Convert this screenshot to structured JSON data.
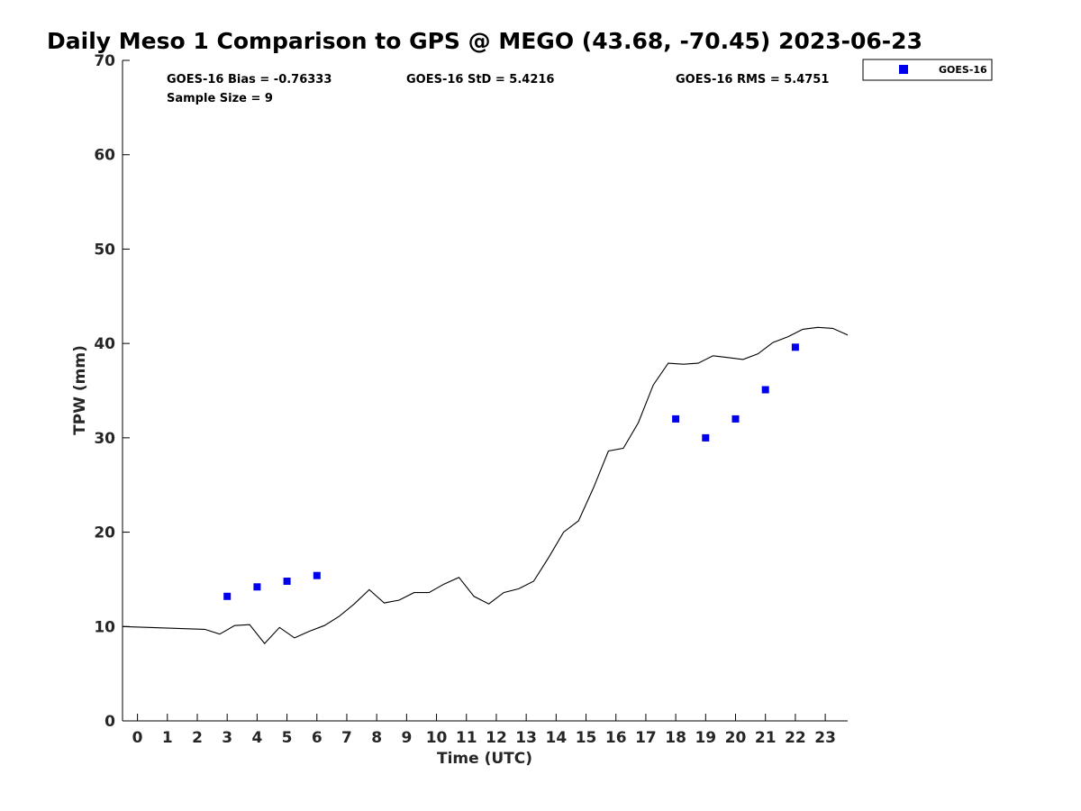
{
  "chart_data": {
    "type": "scatter",
    "title": "Daily Meso 1 Comparison to GPS @ MEGO (43.68, -70.45) 2023-06-23",
    "xlabel": "Time (UTC)",
    "ylabel": "TPW (mm)",
    "xlim": [
      -0.5,
      23.75
    ],
    "ylim": [
      0,
      70
    ],
    "x_ticks": [
      0,
      1,
      2,
      3,
      4,
      5,
      6,
      7,
      8,
      9,
      10,
      11,
      12,
      13,
      14,
      15,
      16,
      17,
      18,
      19,
      20,
      21,
      22,
      23
    ],
    "y_ticks": [
      0,
      10,
      20,
      30,
      40,
      50,
      60,
      70
    ],
    "grid": false,
    "legend_position": "top-right",
    "stats": {
      "bias": "GOES-16 Bias = -0.76333",
      "std": "GOES-16 StD = 5.4216",
      "rms": "GOES-16 RMS = 5.4751",
      "sample": "Sample Size = 9"
    },
    "series": [
      {
        "name": "GOES-16",
        "kind": "markers",
        "color": "#0000ee",
        "x": [
          3,
          4,
          5,
          6,
          18,
          19,
          20,
          21,
          22
        ],
        "y": [
          13.2,
          14.2,
          14.8,
          15.4,
          32.0,
          30.0,
          32.0,
          35.1,
          39.6
        ]
      },
      {
        "kind": "line",
        "color": "#000000",
        "x": [
          -0.5,
          2.25,
          2.75,
          3.25,
          3.75,
          4.25,
          4.75,
          5.25,
          5.75,
          6.25,
          6.75,
          7.25,
          7.75,
          8.25,
          8.75,
          9.25,
          9.75,
          10.25,
          10.75,
          11.25,
          11.75,
          12.25,
          12.75,
          13.25,
          13.75,
          14.25,
          14.75,
          15.25,
          15.75,
          16.25,
          16.75,
          17.25,
          17.75,
          18.25,
          18.75,
          19.25,
          19.75,
          20.25,
          20.75,
          21.25,
          21.75,
          22.25,
          22.75,
          23.25,
          23.75
        ],
        "y": [
          10.0,
          9.7,
          9.2,
          10.1,
          10.2,
          8.2,
          9.9,
          8.8,
          9.5,
          10.1,
          11.1,
          12.4,
          13.9,
          12.5,
          12.8,
          13.6,
          13.6,
          14.5,
          15.2,
          13.2,
          12.4,
          13.6,
          14.0,
          14.8,
          17.3,
          20.0,
          21.2,
          24.7,
          28.6,
          28.9,
          31.6,
          35.6,
          37.9,
          37.8,
          37.9,
          38.7,
          38.5,
          38.3,
          38.9,
          40.1,
          40.7,
          41.5,
          41.7,
          41.6,
          40.9
        ]
      }
    ]
  }
}
